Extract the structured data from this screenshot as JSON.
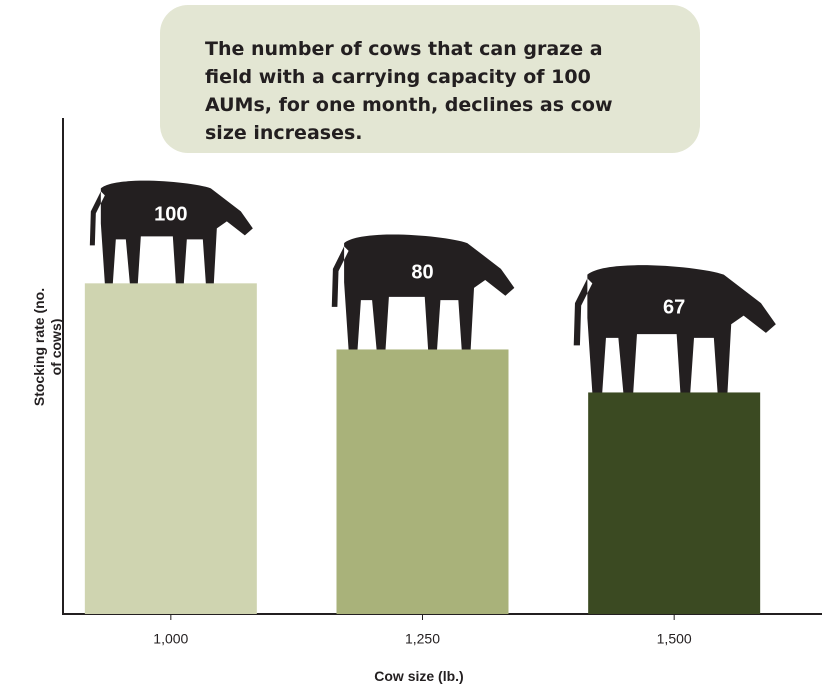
{
  "chart_data": {
    "type": "bar",
    "title": "The number of cows that can graze a field with a carrying capacity of 100 AUMs, for one month, declines as cow size increases.",
    "xlabel": "Cow size (lb.)",
    "ylabel": "Stocking rate (no. of cows)",
    "categories": [
      "1,000",
      "1,250",
      "1,500"
    ],
    "values": [
      100,
      80,
      67
    ],
    "colors": [
      "#cfd4b0",
      "#a9b27a",
      "#3b4a22"
    ],
    "ylim": [
      0,
      150
    ]
  }
}
